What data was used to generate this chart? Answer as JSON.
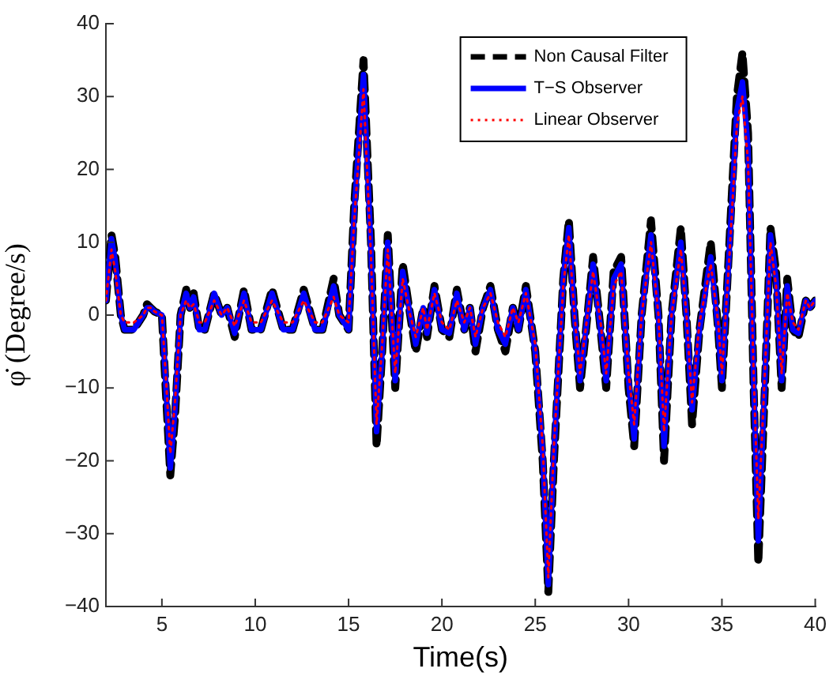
{
  "chart_data": {
    "type": "line",
    "xlabel": "Time(s)",
    "ylabel": "φ̇ (Degree/s)",
    "xlim": [
      2,
      40
    ],
    "xticks": [
      5,
      10,
      15,
      20,
      25,
      30,
      35,
      40
    ],
    "ylim": [
      -40,
      40
    ],
    "yticks": [
      -40,
      -30,
      -20,
      -10,
      0,
      10,
      20,
      30,
      40
    ],
    "grid": false,
    "legend": "top right",
    "marker": "none",
    "x": [
      2,
      2.3,
      2.5,
      2.8,
      3,
      3.5,
      4,
      4.2,
      4.4,
      4.6,
      5,
      5.2,
      5.45,
      5.7,
      6,
      6.3,
      6.5,
      6.7,
      7,
      7.3,
      7.8,
      8.2,
      8.5,
      8.9,
      9.4,
      9.8,
      10.3,
      10.9,
      11.5,
      12,
      12.6,
      13.2,
      13.6,
      14.2,
      14.5,
      15,
      15.3,
      15.8,
      16.2,
      16.5,
      16.8,
      17.1,
      17.5,
      17.9,
      18.3,
      18.6,
      19,
      19.2,
      19.6,
      20,
      20.4,
      20.8,
      21.2,
      21.5,
      21.8,
      22.2,
      22.6,
      23,
      23.4,
      23.8,
      24.1,
      24.5,
      25,
      25.4,
      25.7,
      26,
      26.5,
      26.8,
      27.1,
      27.4,
      27.8,
      28.1,
      28.5,
      28.8,
      29.2,
      29.6,
      30,
      30.3,
      30.7,
      31.2,
      31.6,
      31.9,
      32.3,
      32.8,
      33.1,
      33.4,
      33.8,
      34.4,
      34.8,
      35,
      35.4,
      35.8,
      36.1,
      36.4,
      36.7,
      36.95,
      37.3,
      37.6,
      37.9,
      38.2,
      38.5,
      38.8,
      39.1,
      39.5,
      39.7,
      40
    ],
    "series": [
      {
        "name": "Non Causal Filter",
        "color": "#000000",
        "line_style": "dashed",
        "values": [
          2,
          11,
          8,
          0,
          -2,
          -2,
          0,
          1.5,
          1,
          0.5,
          0,
          -10,
          -22,
          -14,
          0,
          3.5,
          1,
          3,
          -2,
          -2,
          3,
          0,
          1,
          -3,
          3.5,
          -2,
          -2,
          3.5,
          -2,
          -2,
          3.5,
          -2,
          -2,
          5,
          0,
          -2,
          15,
          35,
          10,
          -18,
          -5,
          11,
          -10,
          7,
          0,
          -5,
          1,
          -3,
          4,
          -2,
          -3,
          3.5,
          -2,
          1,
          -5,
          1,
          4,
          -2,
          -5,
          1,
          -2,
          4,
          -5,
          -20,
          -38,
          -20,
          5,
          13,
          0,
          -10,
          0,
          8,
          -2,
          -10,
          6,
          8,
          -10,
          -18,
          0,
          13,
          0,
          -20,
          0,
          12,
          0,
          -15,
          -2,
          10,
          -2,
          -10,
          10,
          30,
          36,
          25,
          -10,
          -34,
          -10,
          12,
          6,
          -10,
          5,
          -2,
          -3,
          2,
          1,
          2
        ]
      },
      {
        "name": "T−S Observer",
        "color": "#0000ff",
        "line_style": "solid",
        "values": [
          2,
          10.5,
          7.5,
          0,
          -2,
          -2,
          0,
          1,
          1,
          0.5,
          0,
          -9,
          -21,
          -13,
          0,
          3,
          1,
          2.5,
          -2,
          -2,
          3,
          0,
          1,
          -2.5,
          3,
          -2,
          -2,
          3,
          -2,
          -2,
          3,
          -2,
          -2,
          4,
          0,
          -2,
          14,
          33,
          9,
          -16,
          -5,
          10,
          -9,
          6,
          0,
          -4,
          1,
          -2.5,
          3.5,
          -2,
          -2.5,
          3,
          -2,
          1,
          -4,
          1,
          3.5,
          -2,
          -4,
          1,
          -2,
          3.5,
          -5,
          -19,
          -37,
          -19,
          5,
          12,
          0,
          -9,
          0,
          7,
          -2,
          -9,
          5,
          7,
          -9,
          -17,
          0,
          11,
          0,
          -18,
          0,
          10,
          0,
          -13,
          -2,
          8,
          -2,
          -9,
          9,
          28,
          32,
          23,
          -9,
          -31,
          -9,
          11,
          5,
          -9,
          4,
          -2,
          -2.5,
          2,
          1,
          2
        ]
      },
      {
        "name": "Linear Observer",
        "color": "#ff0000",
        "line_style": "dotted",
        "values": [
          2,
          9,
          6,
          0,
          -1,
          -1,
          0,
          1,
          1,
          0.5,
          0,
          -8,
          -19,
          -12,
          0,
          2,
          1,
          1.5,
          -1,
          -1,
          2,
          0,
          1,
          -1.5,
          2,
          -1,
          -1,
          2,
          -1,
          -1,
          2,
          -1,
          -1,
          2.5,
          0,
          -1,
          13,
          31,
          8,
          -15,
          -4,
          9,
          -8,
          5,
          0,
          -3,
          1,
          -2,
          3,
          -1,
          -2,
          2,
          -1,
          1,
          -3,
          1,
          3,
          -1,
          -3,
          1,
          -1,
          3,
          -4,
          -18,
          -36,
          -18,
          4,
          11,
          0,
          -8,
          0,
          6,
          -1,
          -8,
          4,
          6,
          -8,
          -15,
          0,
          10,
          0,
          -16,
          0,
          9,
          0,
          -12,
          -1,
          7,
          -1,
          -8,
          8,
          26,
          30,
          21,
          -8,
          -28,
          -8,
          10,
          4,
          -8,
          3,
          -1,
          -2,
          2,
          1,
          2
        ]
      }
    ]
  }
}
